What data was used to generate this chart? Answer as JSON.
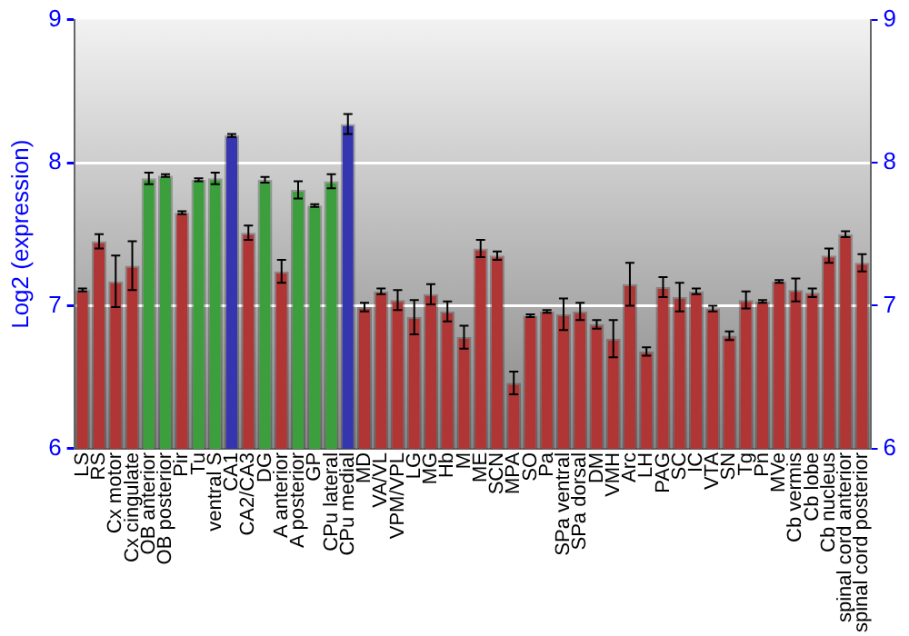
{
  "chart_data": {
    "type": "bar",
    "ylabel": "Log2 (expression)",
    "categories": [
      "LS",
      "RS",
      "Cx motor",
      "Cx cingulate",
      "OB anterior",
      "OB posterior",
      "Pir",
      "Tu",
      "ventral S",
      "CA1",
      "CA2/CA3",
      "DG",
      "A anterior",
      "A posterior",
      "GP",
      "CPu lateral",
      "CPu medial",
      "MD",
      "VA/VL",
      "VPM/VPL",
      "LG",
      "MG",
      "Hb",
      "M",
      "ME",
      "SCN",
      "MPA",
      "SO",
      "Pa",
      "SPa ventral",
      "SPa dorsal",
      "DM",
      "VMH",
      "Arc",
      "LH",
      "PAG",
      "SC",
      "IC",
      "VTA",
      "SN",
      "Tg",
      "Pn",
      "MVe",
      "Cb vermis",
      "Cb lobe",
      "Cb nucleus",
      "spinal cord anterior",
      "spinal cord posterior"
    ],
    "values": [
      7.11,
      7.45,
      7.17,
      7.28,
      7.89,
      7.91,
      7.65,
      7.88,
      7.89,
      8.19,
      7.51,
      7.88,
      7.24,
      7.81,
      7.7,
      7.87,
      8.27,
      6.99,
      7.1,
      7.04,
      6.92,
      7.08,
      6.96,
      6.78,
      7.4,
      7.35,
      6.46,
      6.93,
      6.96,
      6.94,
      6.96,
      6.87,
      6.77,
      7.15,
      6.68,
      7.13,
      7.06,
      7.1,
      6.98,
      6.79,
      7.04,
      7.03,
      7.17,
      7.11,
      7.09,
      7.35,
      7.5,
      7.3
    ],
    "errors": [
      0.01,
      0.05,
      0.18,
      0.17,
      0.04,
      0.01,
      0.01,
      0.01,
      0.04,
      0.01,
      0.05,
      0.02,
      0.08,
      0.06,
      0.01,
      0.05,
      0.07,
      0.03,
      0.02,
      0.07,
      0.12,
      0.07,
      0.07,
      0.08,
      0.06,
      0.03,
      0.08,
      0.01,
      0.01,
      0.11,
      0.06,
      0.03,
      0.13,
      0.15,
      0.03,
      0.07,
      0.1,
      0.02,
      0.02,
      0.03,
      0.06,
      0.01,
      0.01,
      0.08,
      0.03,
      0.05,
      0.02,
      0.06
    ],
    "colors": [
      "#b03535",
      "#b03535",
      "#b03535",
      "#b03535",
      "#3d9e3d",
      "#3d9e3d",
      "#b03535",
      "#3d9e3d",
      "#3d9e3d",
      "#3535b0",
      "#b03535",
      "#3d9e3d",
      "#b03535",
      "#3d9e3d",
      "#3d9e3d",
      "#3d9e3d",
      "#3535b0",
      "#b03535",
      "#b03535",
      "#b03535",
      "#b03535",
      "#b03535",
      "#b03535",
      "#b03535",
      "#b03535",
      "#b03535",
      "#b03535",
      "#b03535",
      "#b03535",
      "#b03535",
      "#b03535",
      "#b03535",
      "#b03535",
      "#b03535",
      "#b03535",
      "#b03535",
      "#b03535",
      "#b03535",
      "#b03535",
      "#b03535",
      "#b03535",
      "#b03535",
      "#b03535",
      "#b03535",
      "#b03535",
      "#b03535",
      "#b03535",
      "#b03535"
    ],
    "ylim": [
      6,
      9
    ],
    "yticks": [
      6,
      7,
      8,
      9
    ],
    "y2lim": [
      6,
      9
    ],
    "y2ticks": [
      6,
      7,
      8,
      9
    ],
    "grid": "y",
    "legend": false
  }
}
